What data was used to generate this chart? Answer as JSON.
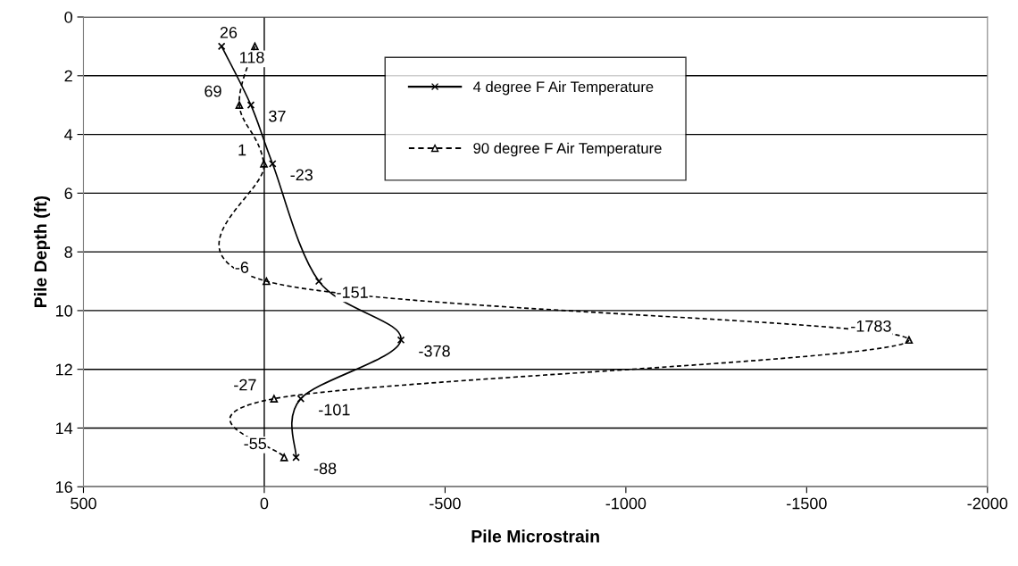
{
  "chart_data": {
    "type": "line",
    "orientation": "horizontal",
    "xlabel": "Pile Microstrain",
    "ylabel": "Pile Depth (ft)",
    "xlim": [
      500,
      -2000
    ],
    "xticks": [
      500,
      0,
      -500,
      -1000,
      -1500,
      -2000
    ],
    "ylim": [
      16,
      0
    ],
    "yticks": [
      0,
      2,
      4,
      6,
      8,
      10,
      12,
      14,
      16
    ],
    "grid": "y",
    "legend": "top",
    "data_labels": true,
    "ref_lines": [
      {
        "axis": "x",
        "value": 0,
        "color": "#000000"
      }
    ],
    "series": [
      {
        "name": "4 degree F Air Temperature",
        "color": "#000000",
        "marker": "cross",
        "line_style": "solid",
        "x": [
          1,
          3,
          5,
          9,
          11,
          13,
          15
        ],
        "values": [
          118,
          37,
          -23,
          -151,
          -378,
          -101,
          -88
        ]
      },
      {
        "name": "90 degree F Air Temperature",
        "color": "#000000",
        "marker": "triangle",
        "line_style": "dashed",
        "x": [
          1,
          3,
          5,
          9,
          11,
          13,
          15
        ],
        "values": [
          26,
          69,
          1,
          -6,
          -1783,
          -27,
          -55
        ]
      }
    ]
  }
}
